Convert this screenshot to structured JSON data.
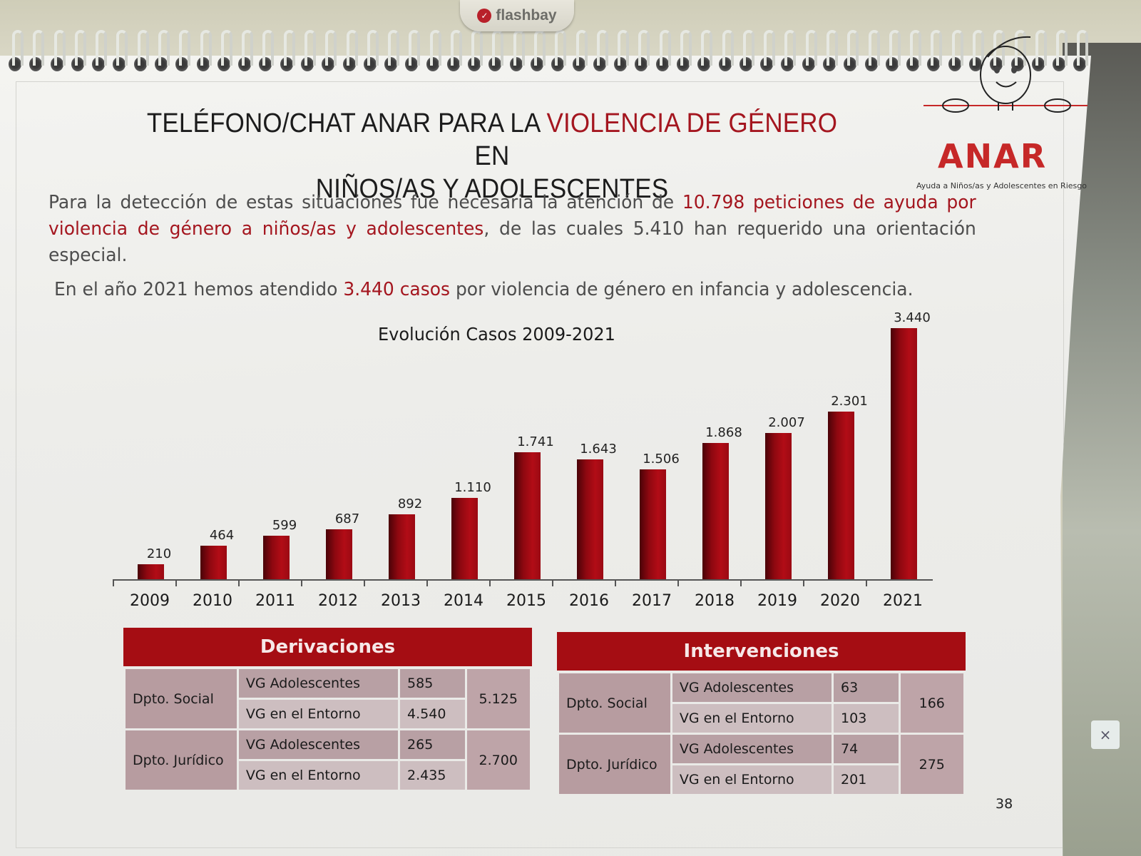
{
  "clip_brand": "flashbay",
  "logo": {
    "word": "ANAR",
    "subtitle": "Ayuda a Niños/as y Adolescentes en Riesgo"
  },
  "title": {
    "line1_prefix": "TELÉFONO/CHAT ANAR PARA LA ",
    "line1_highlight": "VIOLENCIA DE GÉNERO",
    "line1_suffix": " EN",
    "line2": "NIÑOS/AS Y ADOLESCENTES"
  },
  "paragraph1": {
    "part1": "Para la detección de estas situaciones fue necesaria la atención de ",
    "highlight": "10.798 peticiones de ayuda por violencia de género a niños/as y adolescentes",
    "part2": ", de las cuales 5.410 han requerido una orientación especial."
  },
  "paragraph2": {
    "part1": "En el año 2021 hemos atendido ",
    "highlight": "3.440 casos",
    "part2": " por violencia de género en infancia y adolescencia."
  },
  "chart_data": {
    "type": "bar",
    "title": "Evolución Casos 2009-2021",
    "categories": [
      "2009",
      "2010",
      "2011",
      "2012",
      "2013",
      "2014",
      "2015",
      "2016",
      "2017",
      "2018",
      "2019",
      "2020",
      "2021"
    ],
    "values": [
      210,
      464,
      599,
      687,
      892,
      1110,
      1741,
      1643,
      1506,
      1868,
      2007,
      2301,
      3440
    ],
    "labels": [
      "210",
      "464",
      "599",
      "687",
      "892",
      "1.110",
      "1.741",
      "1.643",
      "1.506",
      "1.868",
      "2.007",
      "2.301",
      "3.440"
    ],
    "xlabel": "",
    "ylabel": "",
    "ylim": [
      0,
      3440
    ],
    "grid": false,
    "legend": null,
    "bar_color": "#a50d13"
  },
  "tables": {
    "derivaciones": {
      "title": "Derivaciones",
      "rows": [
        {
          "dept": "Dpto. Social",
          "items": [
            {
              "label": "VG Adolescentes",
              "value": "585"
            },
            {
              "label": "VG en el Entorno",
              "value": "4.540"
            }
          ],
          "total": "5.125"
        },
        {
          "dept": "Dpto. Jurídico",
          "items": [
            {
              "label": "VG Adolescentes",
              "value": "265"
            },
            {
              "label": "VG en el Entorno",
              "value": "2.435"
            }
          ],
          "total": "2.700"
        }
      ]
    },
    "intervenciones": {
      "title": "Intervenciones",
      "rows": [
        {
          "dept": "Dpto. Social",
          "items": [
            {
              "label": "VG Adolescentes",
              "value": "63"
            },
            {
              "label": "VG en el Entorno",
              "value": "103"
            }
          ],
          "total": "166"
        },
        {
          "dept": "Dpto. Jurídico",
          "items": [
            {
              "label": "VG Adolescentes",
              "value": "74"
            },
            {
              "label": "VG en el Entorno",
              "value": "201"
            }
          ],
          "total": "275"
        }
      ]
    }
  },
  "page_number": "38",
  "background_close_glyph": "×"
}
